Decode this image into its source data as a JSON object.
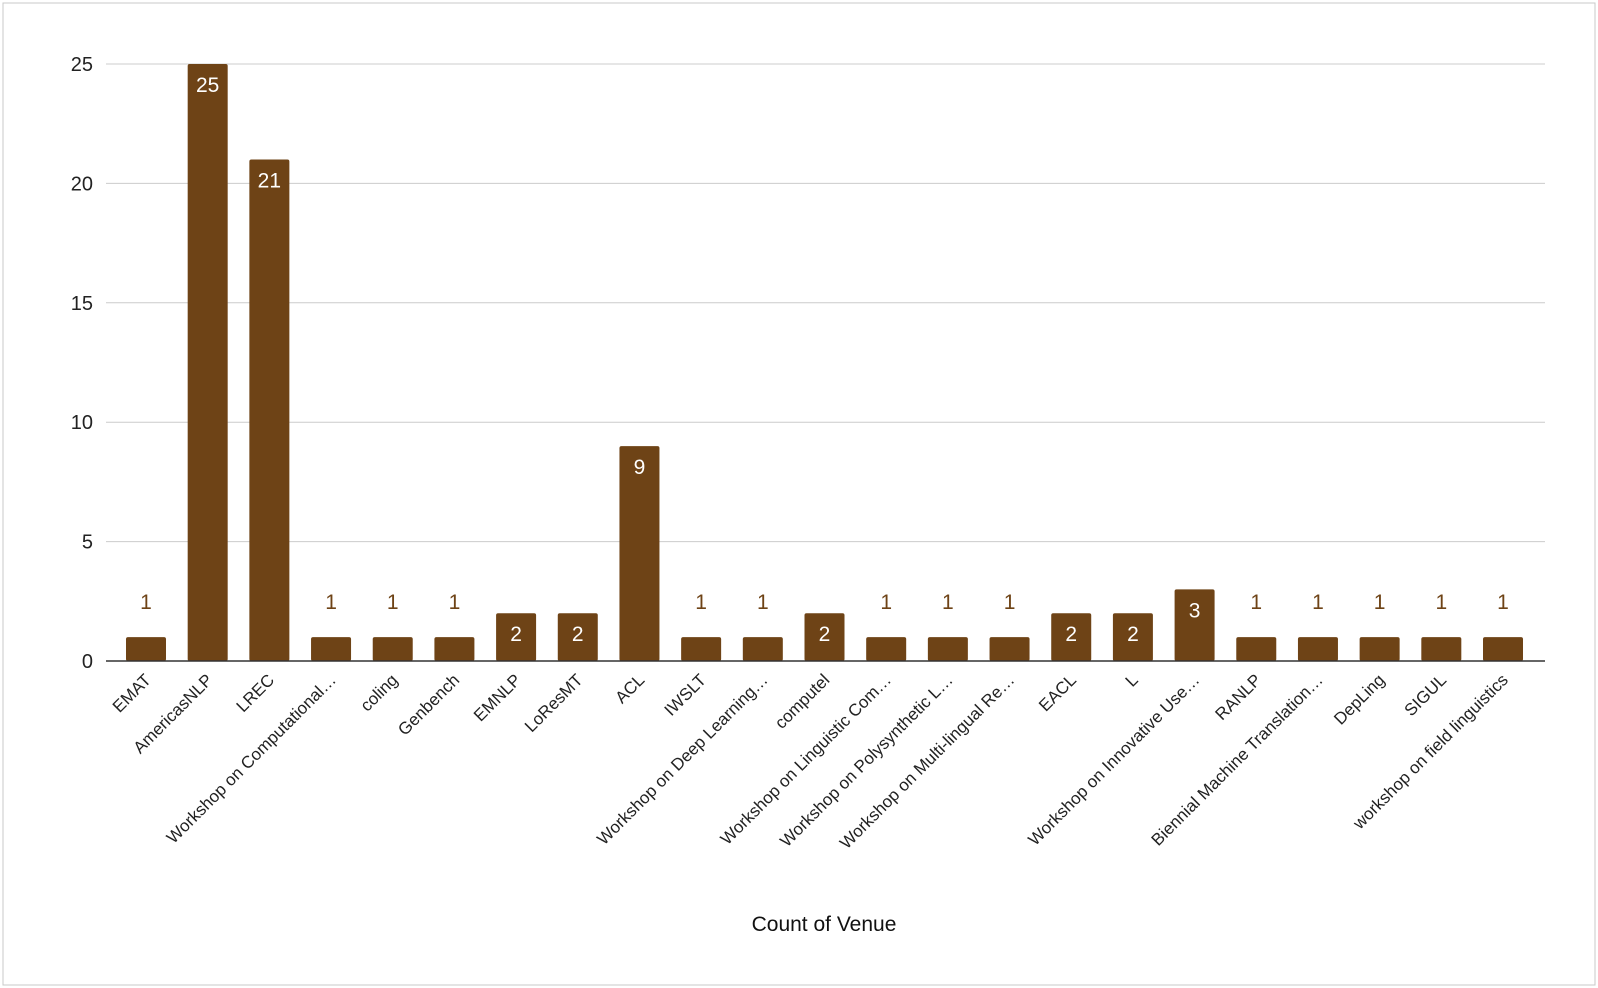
{
  "chart_data": {
    "type": "bar",
    "title": "",
    "xlabel": "Count of Venue",
    "ylabel": "",
    "ylim": [
      0,
      25
    ],
    "yticks": [
      0,
      5,
      10,
      15,
      20,
      25
    ],
    "grid": true,
    "legend": "none",
    "bar_color": "#6e4316",
    "categories": [
      "EMAT",
      "AmericasNLP",
      "LREC",
      "Workshop on Computational…",
      "coling",
      "Genbench",
      "EMNLP",
      "LoResMT",
      "ACL",
      "IWSLT",
      "Workshop on Deep Learning…",
      "computel",
      "Workshop on Linguistic Com…",
      "Workshop on Polysynthetic L…",
      "Workshop on Multi-lingual Re…",
      "EACL",
      "L",
      "Workshop on Innovative Use…",
      "RANLP",
      "Biennial Machine Translation…",
      "DepLing",
      "SIGUL",
      "workshop on field linguistics"
    ],
    "values": [
      1,
      25,
      21,
      1,
      1,
      1,
      2,
      2,
      9,
      1,
      1,
      2,
      1,
      1,
      1,
      2,
      2,
      3,
      1,
      1,
      1,
      1,
      1
    ],
    "data_labels": [
      "1",
      "25",
      "21",
      "1",
      "1",
      "1",
      "2",
      "2",
      "9",
      "1",
      "1",
      "2",
      "1",
      "1",
      "1",
      "2",
      "2",
      "3",
      "1",
      "1",
      "1",
      "1",
      "1"
    ]
  }
}
